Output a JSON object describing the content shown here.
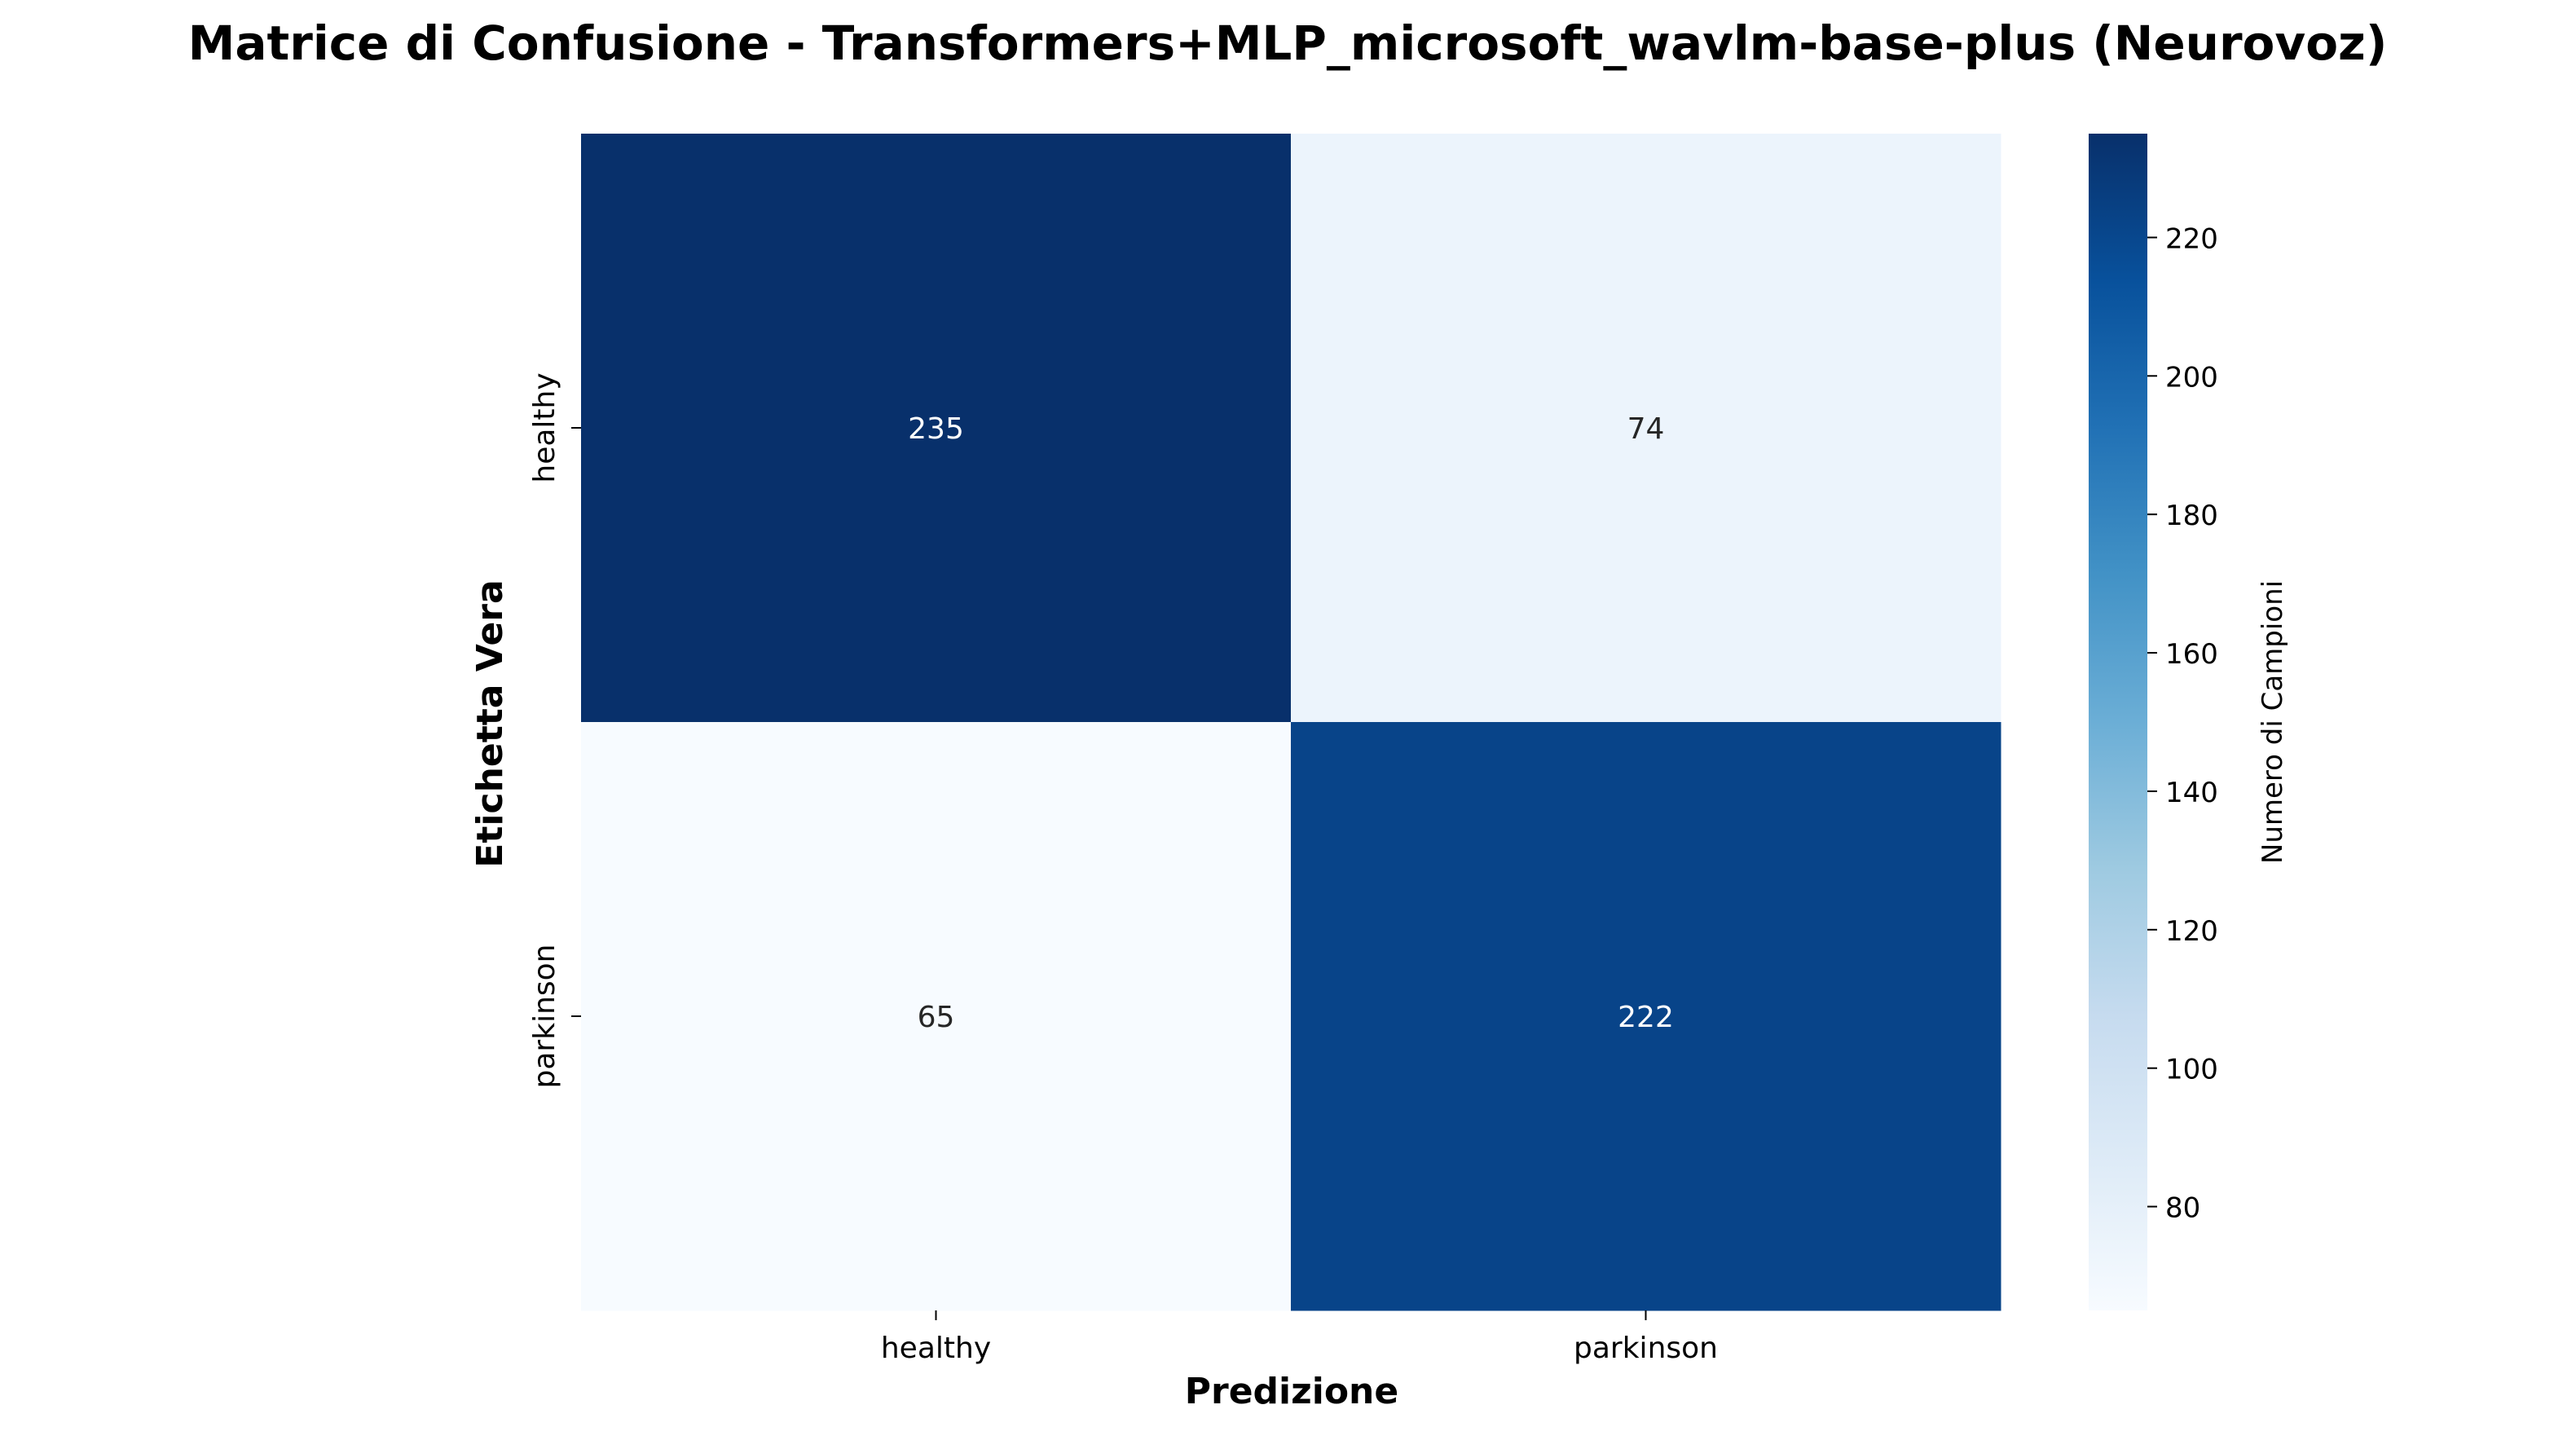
{
  "chart_data": {
    "type": "heatmap",
    "title": "Matrice di Confusione - Transformers+MLP_microsoft_wavlm-base-plus (Neurovoz)",
    "xlabel": "Predizione",
    "ylabel": "Etichetta Vera",
    "x_categories": [
      "healthy",
      "parkinson"
    ],
    "y_categories": [
      "healthy",
      "parkinson"
    ],
    "values": [
      [
        235,
        74
      ],
      [
        65,
        222
      ]
    ],
    "colormap": "Blues",
    "colorbar": {
      "label": "Numero di Campioni",
      "range": [
        65,
        235
      ],
      "ticks": [
        80,
        100,
        120,
        140,
        160,
        180,
        200,
        220
      ]
    },
    "grid": false,
    "legend": "none"
  }
}
